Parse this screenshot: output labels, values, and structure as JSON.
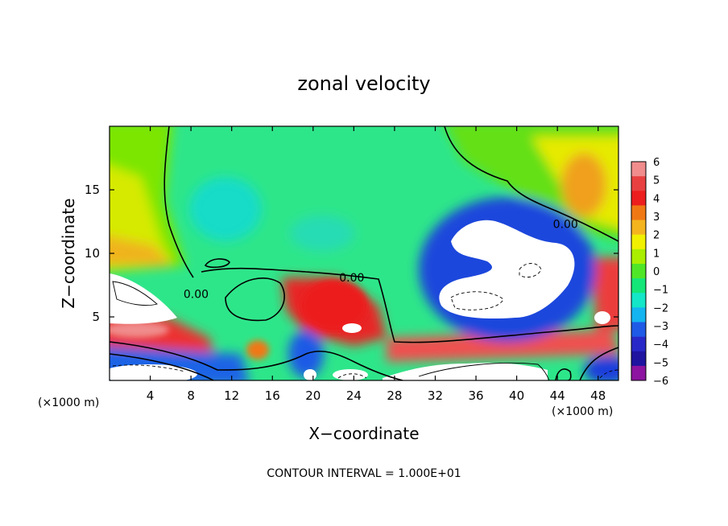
{
  "chart_data": {
    "type": "heatmap",
    "title": "zonal velocity",
    "xlabel": "X−coordinate",
    "ylabel": "Z−coordinate",
    "x_unit_left": "(×1000 m)",
    "x_unit_right": "(×1000 m)",
    "footer": "CONTOUR INTERVAL = 1.000E+01",
    "xlim": [
      0,
      50
    ],
    "ylim": [
      0,
      20
    ],
    "x_ticks": [
      "4",
      "8",
      "12",
      "16",
      "20",
      "24",
      "28",
      "32",
      "36",
      "40",
      "44",
      "48"
    ],
    "x_tick_values": [
      4,
      8,
      12,
      16,
      20,
      24,
      28,
      32,
      36,
      40,
      44,
      48
    ],
    "y_ticks": [
      "5",
      "10",
      "15"
    ],
    "y_tick_values": [
      5,
      10,
      15
    ],
    "contour_labels": [
      {
        "text": "0.00",
        "x": 8.5,
        "y": 6.8
      },
      {
        "text": "0.00",
        "x": 23.8,
        "y": 8.1
      },
      {
        "text": "0.00",
        "x": 44.8,
        "y": 12.3
      }
    ],
    "colorbar": {
      "labels": [
        "6",
        "5",
        "4",
        "3",
        "2",
        "1",
        "0",
        "−1",
        "−2",
        "−3",
        "−4",
        "−5",
        "−6"
      ],
      "colors": [
        "#f08c8c",
        "#e84040",
        "#ec1e1e",
        "#f07814",
        "#f4b41e",
        "#f0f000",
        "#aaee00",
        "#50e628",
        "#14e678",
        "#14e6c8",
        "#14b4f0",
        "#1e5ae6",
        "#2828c8",
        "#1e14a0",
        "#8c14a0"
      ]
    }
  }
}
